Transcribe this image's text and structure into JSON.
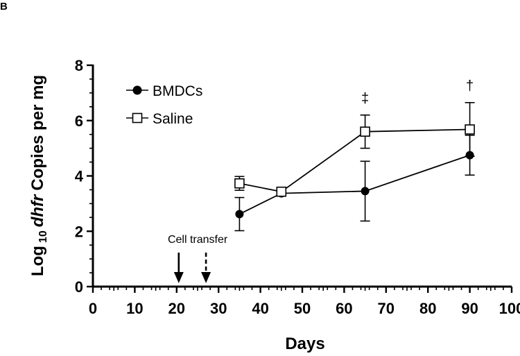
{
  "panel_label": "B",
  "chart_data": {
    "type": "line",
    "xlabel": "Days",
    "ylabel": {
      "prefix": "Log",
      "subscript": "10",
      "italic": "dhfr",
      "suffix": "Copies per mg"
    },
    "xlim": [
      0,
      100
    ],
    "ylim": [
      0,
      8
    ],
    "xticks": [
      0,
      10,
      20,
      30,
      40,
      50,
      60,
      70,
      80,
      90,
      100
    ],
    "yticks": [
      0,
      2,
      4,
      6,
      8
    ],
    "legend_position": "top-left",
    "grid": false,
    "series": [
      {
        "name": "BMDCs",
        "marker": "filled-circle",
        "x": [
          35,
          45,
          65,
          90
        ],
        "y": [
          2.62,
          3.37,
          3.45,
          4.75
        ],
        "err": [
          0.6,
          0.05,
          1.08,
          0.72
        ]
      },
      {
        "name": "Saline",
        "marker": "open-square",
        "x": [
          35,
          45,
          65,
          90
        ],
        "y": [
          3.73,
          3.43,
          5.6,
          5.68
        ],
        "err": [
          0.25,
          0.07,
          0.6,
          0.97
        ]
      }
    ],
    "annotations": [
      {
        "text": "Cell transfer",
        "type": "label",
        "x": 27
      },
      {
        "type": "arrow-solid",
        "x": 20.5
      },
      {
        "type": "arrow-dashed",
        "x": 27
      },
      {
        "text": "‡",
        "type": "significance",
        "x": 65
      },
      {
        "text": "†",
        "type": "significance",
        "x": 90
      }
    ]
  }
}
